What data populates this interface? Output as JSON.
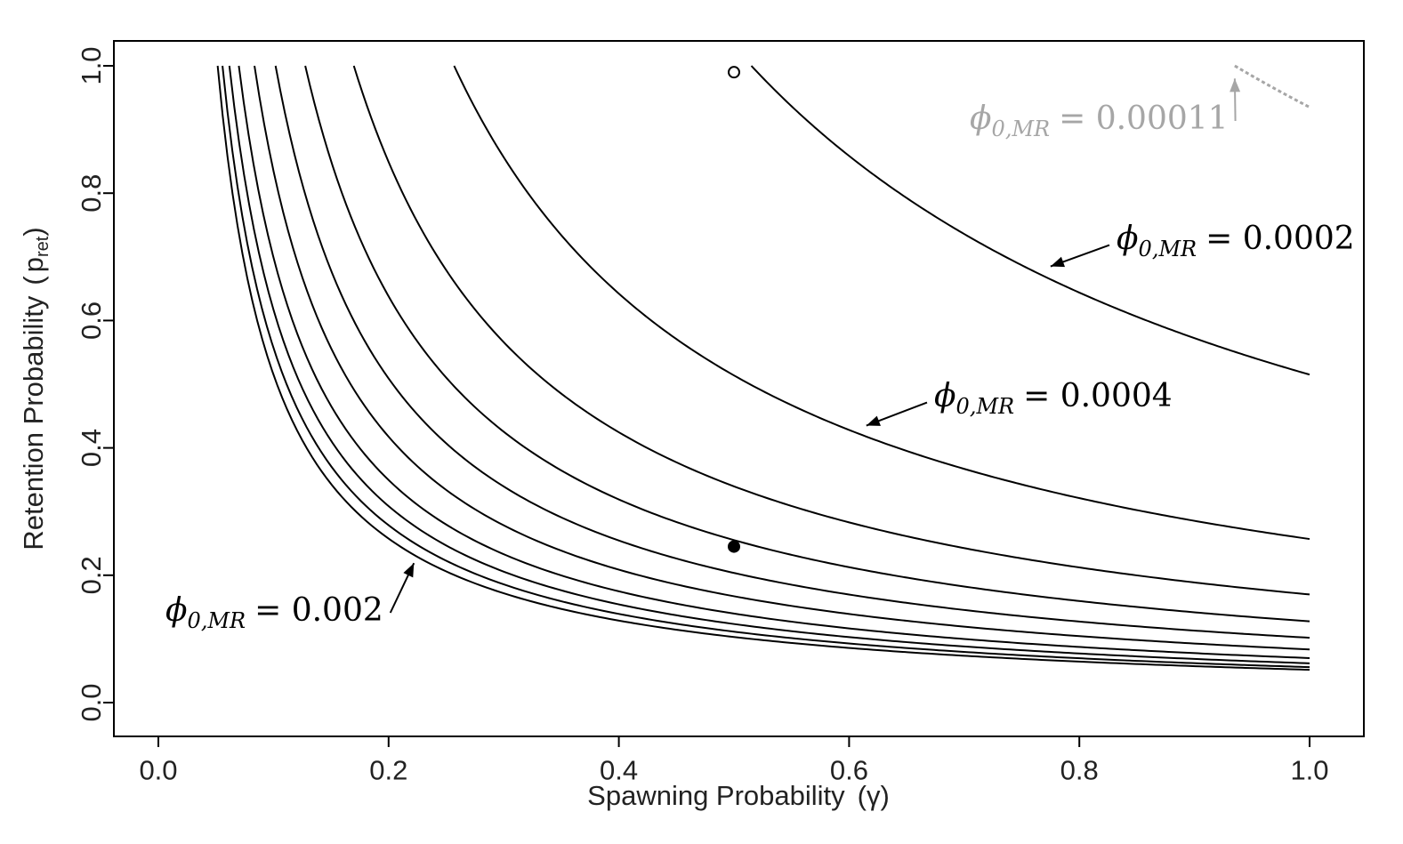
{
  "chart_data": {
    "type": "line",
    "xlabel": "Spawning Probability",
    "xlabel_symbol": "(γ)",
    "ylabel": "Retention Probability",
    "ylabel_symbol_main": "p",
    "ylabel_symbol_sub": "ret",
    "xlim": [
      0.0,
      1.0
    ],
    "ylim": [
      0.0,
      1.0
    ],
    "xticks": [
      "0.0",
      "0.2",
      "0.4",
      "0.6",
      "0.8",
      "1.0"
    ],
    "yticks": [
      "0.0",
      "0.2",
      "0.4",
      "0.6",
      "0.8",
      "1.0"
    ],
    "grid": false,
    "curve_model": "y = k / x",
    "curves": [
      {
        "k": 0.0515,
        "x_start": 0.0515,
        "x_end": 1.0
      },
      {
        "k": 0.0557,
        "x_start": 0.0557,
        "x_end": 1.0
      },
      {
        "k": 0.0617,
        "x_start": 0.0617,
        "x_end": 1.0
      },
      {
        "k": 0.0699,
        "x_start": 0.0699,
        "x_end": 1.0
      },
      {
        "k": 0.0835,
        "x_start": 0.0835,
        "x_end": 1.0
      },
      {
        "k": 0.1018,
        "x_start": 0.1018,
        "x_end": 1.0
      },
      {
        "k": 0.1276,
        "x_start": 0.1276,
        "x_end": 1.0
      },
      {
        "k": 0.1698,
        "x_start": 0.1698,
        "x_end": 1.0
      },
      {
        "k": 0.2569,
        "x_start": 0.2569,
        "x_end": 1.0
      },
      {
        "k": 0.5151,
        "x_start": 0.5151,
        "x_end": 1.0
      }
    ],
    "gray_curve": {
      "k": 0.935,
      "x_start": 0.935,
      "x_end": 1.0,
      "color": "#a6a6a6"
    },
    "points": [
      {
        "x": 0.5,
        "y": 0.99,
        "style": "open"
      },
      {
        "x": 0.5,
        "y": 0.245,
        "style": "filled"
      }
    ],
    "annotations": [
      {
        "id": "a0002",
        "symbol": "ϕ",
        "subscript": "0,MR",
        "text": "= 0.0002",
        "color": "#000000",
        "arrow_to": [
          0.775,
          0.685
        ]
      },
      {
        "id": "a0004",
        "symbol": "ϕ",
        "subscript": "0,MR",
        "text": "= 0.0004",
        "color": "#000000",
        "arrow_to": [
          0.615,
          0.435
        ]
      },
      {
        "id": "a002",
        "symbol": "ϕ",
        "subscript": "0,MR",
        "text": "= 0.002",
        "color": "#000000",
        "arrow_to": [
          0.222,
          0.219
        ]
      },
      {
        "id": "a00011",
        "symbol": "ϕ",
        "subscript": "0,MR",
        "text": "= 0.00011",
        "color": "#a6a6a6",
        "arrow_to": [
          0.935,
          0.98
        ]
      }
    ]
  }
}
